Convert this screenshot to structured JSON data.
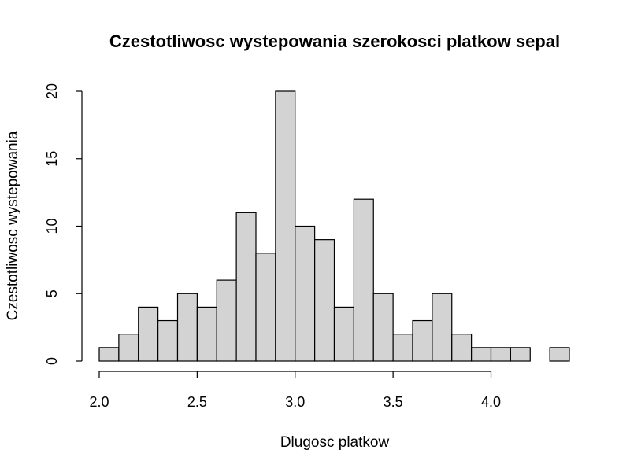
{
  "chart_data": {
    "type": "bar",
    "title": "Czestotliwosc wystepowania szerokosci platkow sepal",
    "xlabel": "Dlugosc platkow",
    "ylabel": "Czestotliwosc wystepowania",
    "bin_edges": [
      2.0,
      2.1,
      2.2,
      2.3,
      2.4,
      2.5,
      2.6,
      2.7,
      2.8,
      2.9,
      3.0,
      3.1,
      3.2,
      3.3,
      3.4,
      3.5,
      3.6,
      3.7,
      3.8,
      3.9,
      4.0,
      4.1,
      4.2,
      4.3,
      4.4
    ],
    "values": [
      1,
      2,
      4,
      3,
      5,
      4,
      6,
      11,
      8,
      20,
      10,
      9,
      4,
      12,
      5,
      2,
      3,
      5,
      2,
      1,
      1,
      1,
      0,
      1
    ],
    "xlim": [
      2.0,
      4.4
    ],
    "ylim": [
      0,
      20
    ],
    "x_ticks": [
      2.0,
      2.5,
      3.0,
      3.5,
      4.0
    ],
    "x_tick_labels": [
      "2.0",
      "2.5",
      "3.0",
      "3.5",
      "4.0"
    ],
    "y_ticks": [
      0,
      5,
      10,
      15,
      20
    ],
    "y_tick_labels": [
      "0",
      "5",
      "10",
      "15",
      "20"
    ],
    "grid": false,
    "colors": {
      "bar_fill": "#d3d3d3",
      "bar_stroke": "#000000"
    }
  }
}
